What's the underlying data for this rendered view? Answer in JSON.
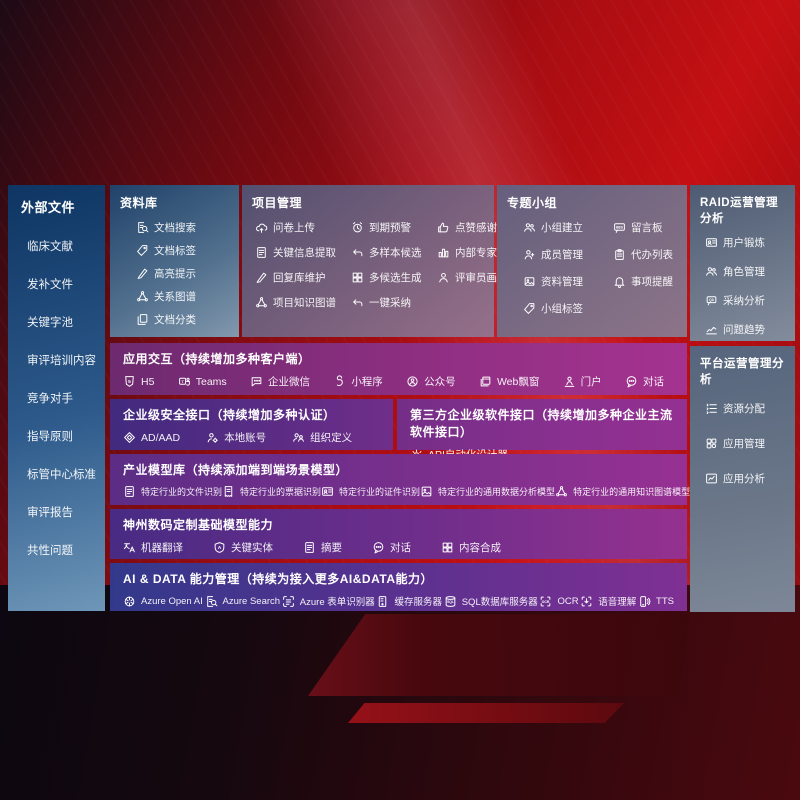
{
  "colors": {
    "background_red": "#bb0e13",
    "sidebar_blue": "#0e3563",
    "panel_slate": "#6b7689",
    "band_magenta": "#a43390",
    "band_indigo": "#32398b"
  },
  "sidebar": {
    "title": "外部文件",
    "items": [
      {
        "label": "临床文献"
      },
      {
        "label": "发补文件"
      },
      {
        "label": "关键字池"
      },
      {
        "label": "审评培训内容"
      },
      {
        "label": "竞争对手"
      },
      {
        "label": "指导原则"
      },
      {
        "label": "标管中心标准"
      },
      {
        "label": "审评报告"
      },
      {
        "label": "共性问题"
      }
    ]
  },
  "panels": {
    "library": {
      "title": "资料库",
      "items": [
        {
          "icon": "doc-search-icon",
          "label": "文档搜索"
        },
        {
          "icon": "tag-icon",
          "label": "文档标签"
        },
        {
          "icon": "highlight-pen-icon",
          "label": "高亮提示"
        },
        {
          "icon": "network-graph-icon",
          "label": "关系图谱"
        },
        {
          "icon": "copy-docs-icon",
          "label": "文档分类"
        }
      ]
    },
    "project": {
      "title": "项目管理",
      "items": [
        {
          "icon": "cloud-upload-icon",
          "label": "问卷上传"
        },
        {
          "icon": "alarm-icon",
          "label": "到期预警"
        },
        {
          "icon": "thumbs-up-icon",
          "label": "点赞感谢"
        },
        {
          "icon": "doc-lines-icon",
          "label": "关键信息提取"
        },
        {
          "icon": "arrow-return-icon",
          "label": "多样本候选"
        },
        {
          "icon": "ranking-icon",
          "label": "内部专家排名"
        },
        {
          "icon": "highlight-pen-icon",
          "label": "回复库维护"
        },
        {
          "icon": "grid-icon",
          "label": "多候选生成"
        },
        {
          "icon": "person-icon",
          "label": "评审员画像"
        },
        {
          "icon": "network-graph-icon",
          "label": "项目知识图谱"
        },
        {
          "icon": "arrow-return-icon",
          "label": "一键采纳"
        }
      ]
    },
    "groups": {
      "title": "专题小组",
      "items": [
        {
          "icon": "people-icon",
          "label": "小组建立"
        },
        {
          "icon": "bbs-board-icon",
          "label": "留言板"
        },
        {
          "icon": "person-plus-icon",
          "label": "成员管理"
        },
        {
          "icon": "clipboard-icon",
          "label": "代办列表"
        },
        {
          "icon": "photo-icon",
          "label": "资料管理"
        },
        {
          "icon": "bell-icon",
          "label": "事项提醒"
        },
        {
          "icon": "tag-icon",
          "label": "小组标签"
        }
      ]
    },
    "raid": {
      "title": "RAID运营管理分析",
      "items": [
        {
          "icon": "id-card-icon",
          "label": "用户锻炼"
        },
        {
          "icon": "people-icon",
          "label": "角色管理"
        },
        {
          "icon": "qa-bubble-icon",
          "label": "采纳分析"
        },
        {
          "icon": "trend-icon",
          "label": "问题趋势"
        }
      ]
    },
    "platform": {
      "title": "平台运营管理分析",
      "items": [
        {
          "icon": "list-allocation-icon",
          "label": "资源分配"
        },
        {
          "icon": "apps-grid-icon",
          "label": "应用管理"
        },
        {
          "icon": "chart-box-icon",
          "label": "应用分析"
        }
      ]
    }
  },
  "bands": {
    "interaction": {
      "title": "应用交互（持续增加多种客户端）",
      "items": [
        {
          "icon": "h5-icon",
          "label": "H5"
        },
        {
          "icon": "teams-icon",
          "label": "Teams"
        },
        {
          "icon": "chat-bubble-icon",
          "label": "企业微信"
        },
        {
          "icon": "s-link-icon",
          "label": "小程序"
        },
        {
          "icon": "person-badge-icon",
          "label": "公众号"
        },
        {
          "icon": "web-window-icon",
          "label": "Web飘窗"
        },
        {
          "icon": "portal-person-icon",
          "label": "门户"
        },
        {
          "icon": "chat-round-icon",
          "label": "对话"
        }
      ]
    },
    "security": {
      "title": "企业级安全接口（持续增加多种认证）",
      "items": [
        {
          "icon": "diamond-icon",
          "label": "AD/AAD"
        },
        {
          "icon": "person-gear-icon",
          "label": "本地账号"
        },
        {
          "icon": "org-people-icon",
          "label": "组织定义"
        }
      ]
    },
    "thirdparty": {
      "title": "第三方企业级软件接口（持续增加多种企业主流软件接口）",
      "items": [
        {
          "icon": "api-gear-icon",
          "label": "API自动化设计器"
        }
      ]
    },
    "industry": {
      "title": "产业模型库（持续添加端到端场景模型）",
      "items": [
        {
          "icon": "doc-lines-icon",
          "label": "特定行业的文件识别"
        },
        {
          "icon": "receipt-icon",
          "label": "特定行业的票据识别"
        },
        {
          "icon": "id-card-icon",
          "label": "特定行业的证件识别"
        },
        {
          "icon": "image-icon",
          "label": "特定行业的通用数据分析模型"
        },
        {
          "icon": "network-graph-icon",
          "label": "特定行业的通用知识图谱模型"
        }
      ]
    },
    "base_models": {
      "title": "神州数码定制基础模型能力",
      "items": [
        {
          "icon": "translate-icon",
          "label": "机器翻译"
        },
        {
          "icon": "shield-a-icon",
          "label": "关键实体"
        },
        {
          "icon": "doc-lines-icon",
          "label": "摘要"
        },
        {
          "icon": "chat-round-icon",
          "label": "对话"
        },
        {
          "icon": "grid-icon",
          "label": "内容合成"
        }
      ]
    },
    "ai_data": {
      "title": "AI & DATA 能力管理（持续为接入更多AI&DATA能力）",
      "items": [
        {
          "icon": "openai-icon",
          "label": "Azure Open AI"
        },
        {
          "icon": "doc-search-icon",
          "label": "Azure Search"
        },
        {
          "icon": "form-icon",
          "label": "Azure 表单识别器"
        },
        {
          "icon": "server-icon",
          "label": "缓存服务器"
        },
        {
          "icon": "database-icon",
          "label": "SQL数据库服务器"
        },
        {
          "icon": "ocr-icon",
          "label": "OCR"
        },
        {
          "icon": "voice-icon",
          "label": "语音理解"
        },
        {
          "icon": "tts-icon",
          "label": "TTS"
        }
      ]
    }
  }
}
